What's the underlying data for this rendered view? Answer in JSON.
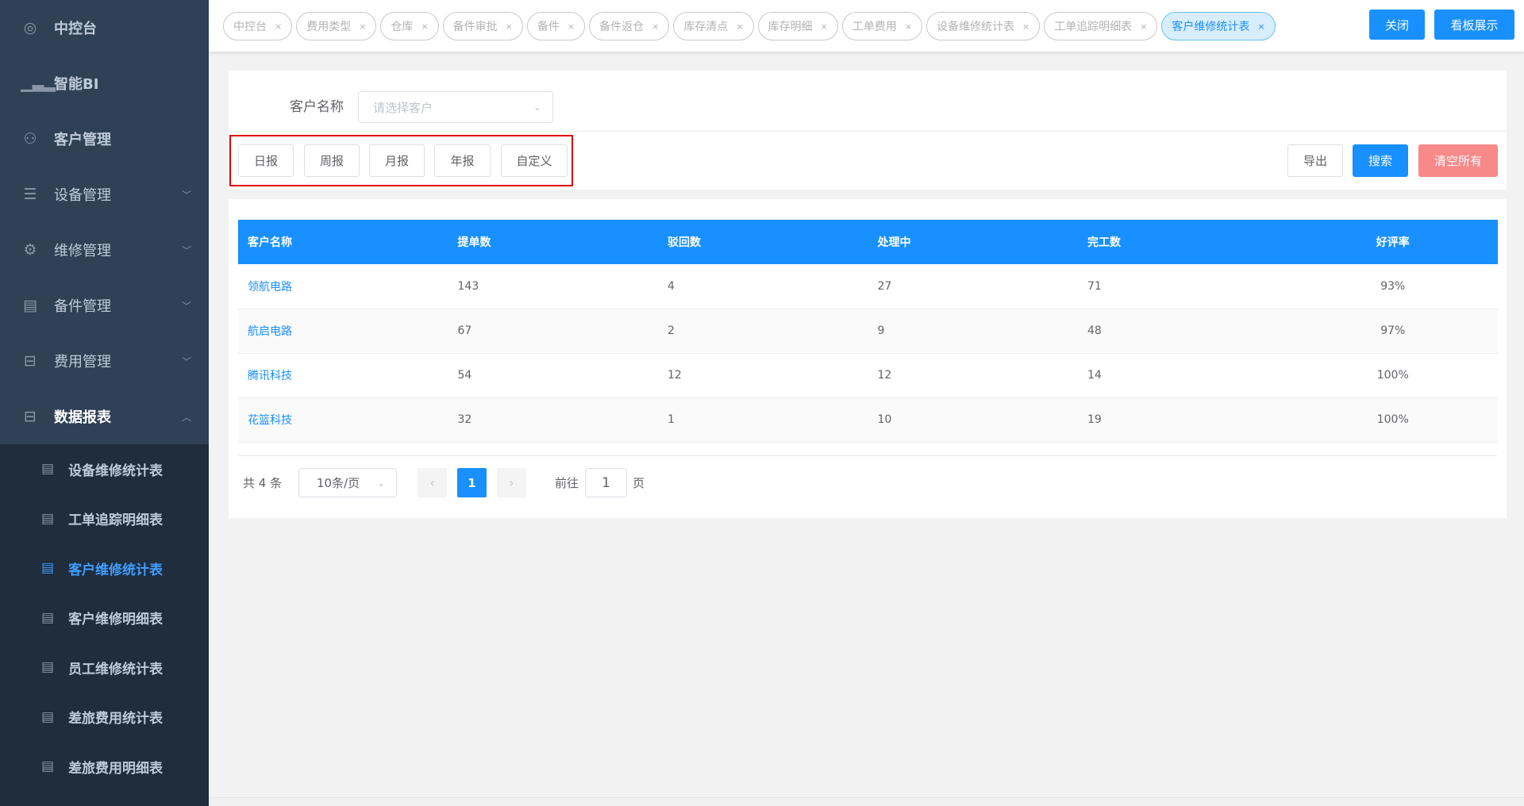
{
  "sidebar": {
    "items": [
      {
        "label": "中控台",
        "icon": "dashboard-icon"
      },
      {
        "label": "智能BI",
        "icon": "bar-chart-icon"
      },
      {
        "label": "客户管理",
        "icon": "users-icon"
      },
      {
        "label": "设备管理",
        "icon": "server-icon",
        "chevron": "down"
      },
      {
        "label": "维修管理",
        "icon": "repair-icon",
        "chevron": "down"
      },
      {
        "label": "备件管理",
        "icon": "toolbox-icon",
        "chevron": "down"
      },
      {
        "label": "费用管理",
        "icon": "presentation-icon",
        "chevron": "down"
      },
      {
        "label": "数据报表",
        "icon": "presentation-icon",
        "chevron": "up"
      }
    ],
    "sub_items": [
      {
        "label": "设备维修统计表"
      },
      {
        "label": "工单追踪明细表"
      },
      {
        "label": "客户维修统计表",
        "active": true
      },
      {
        "label": "客户维修明细表"
      },
      {
        "label": "员工维修统计表"
      },
      {
        "label": "差旅费用统计表"
      },
      {
        "label": "差旅费用明细表"
      }
    ]
  },
  "tabs": [
    {
      "label": "中控台"
    },
    {
      "label": "费用类型"
    },
    {
      "label": "仓库"
    },
    {
      "label": "备件审批"
    },
    {
      "label": "备件"
    },
    {
      "label": "备件返仓"
    },
    {
      "label": "库存清点"
    },
    {
      "label": "库存明细"
    },
    {
      "label": "工单费用"
    },
    {
      "label": "设备维修统计表"
    },
    {
      "label": "工单追踪明细表"
    },
    {
      "label": "客户维修统计表",
      "active": true
    }
  ],
  "tab_close": "×",
  "header": {
    "close": "关闭",
    "board": "看板展示"
  },
  "filter": {
    "customer_label": "客户名称",
    "customer_placeholder": "请选择客户",
    "periods": [
      "日报",
      "周报",
      "月报",
      "年报",
      "自定义"
    ],
    "export": "导出",
    "search": "搜索",
    "clear": "清空所有"
  },
  "table": {
    "columns": [
      "客户名称",
      "提单数",
      "驳回数",
      "处理中",
      "完工数",
      "好评率"
    ],
    "rows": [
      [
        "领航电路",
        "143",
        "4",
        "27",
        "71",
        "93%"
      ],
      [
        "航启电路",
        "67",
        "2",
        "9",
        "48",
        "97%"
      ],
      [
        "腾讯科技",
        "54",
        "12",
        "12",
        "14",
        "100%"
      ],
      [
        "花篮科技",
        "32",
        "1",
        "10",
        "19",
        "100%"
      ]
    ]
  },
  "pagination": {
    "total": "共 4 条",
    "page_size": "10条/页",
    "current": "1",
    "goto_label": "前往",
    "goto_value": "1",
    "page_suffix": "页"
  },
  "colors": {
    "accent": "#1890ff",
    "sidebar": "#304156",
    "danger": "#f78989",
    "highlight_box": "#e00000"
  }
}
